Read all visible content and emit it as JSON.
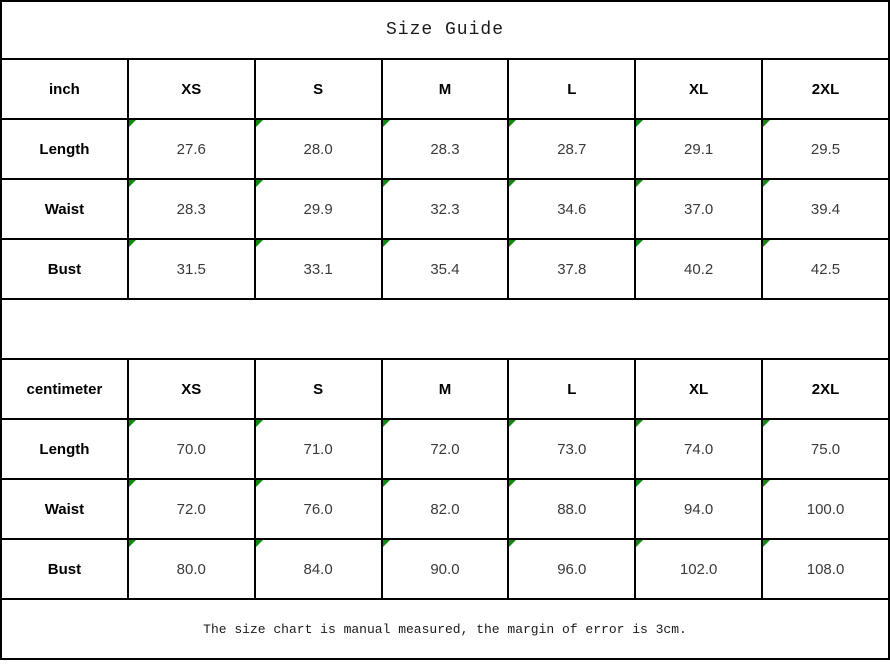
{
  "title": "Size Guide",
  "footer_note": "The size chart is manual measured, the margin of error is 3cm.",
  "colors": {
    "border": "#000000",
    "background": "#ffffff",
    "cell_flag_green": "#128712",
    "text": "#000000"
  },
  "chart_data": [
    {
      "type": "table",
      "unit": "inch",
      "columns": [
        "inch",
        "XS",
        "S",
        "M",
        "L",
        "XL",
        "2XL"
      ],
      "rows": [
        {
          "label": "Length",
          "values": [
            "27.6",
            "28.0",
            "28.3",
            "28.7",
            "29.1",
            "29.5"
          ]
        },
        {
          "label": "Waist",
          "values": [
            "28.3",
            "29.9",
            "32.3",
            "34.6",
            "37.0",
            "39.4"
          ]
        },
        {
          "label": "Bust",
          "values": [
            "31.5",
            "33.1",
            "35.4",
            "37.8",
            "40.2",
            "42.5"
          ]
        }
      ]
    },
    {
      "type": "table",
      "unit": "centimeter",
      "columns": [
        "centimeter",
        "XS",
        "S",
        "M",
        "L",
        "XL",
        "2XL"
      ],
      "rows": [
        {
          "label": "Length",
          "values": [
            "70.0",
            "71.0",
            "72.0",
            "73.0",
            "74.0",
            "75.0"
          ]
        },
        {
          "label": "Waist",
          "values": [
            "72.0",
            "76.0",
            "82.0",
            "88.0",
            "94.0",
            "100.0"
          ]
        },
        {
          "label": "Bust",
          "values": [
            "80.0",
            "84.0",
            "90.0",
            "96.0",
            "102.0",
            "108.0"
          ]
        }
      ]
    }
  ]
}
